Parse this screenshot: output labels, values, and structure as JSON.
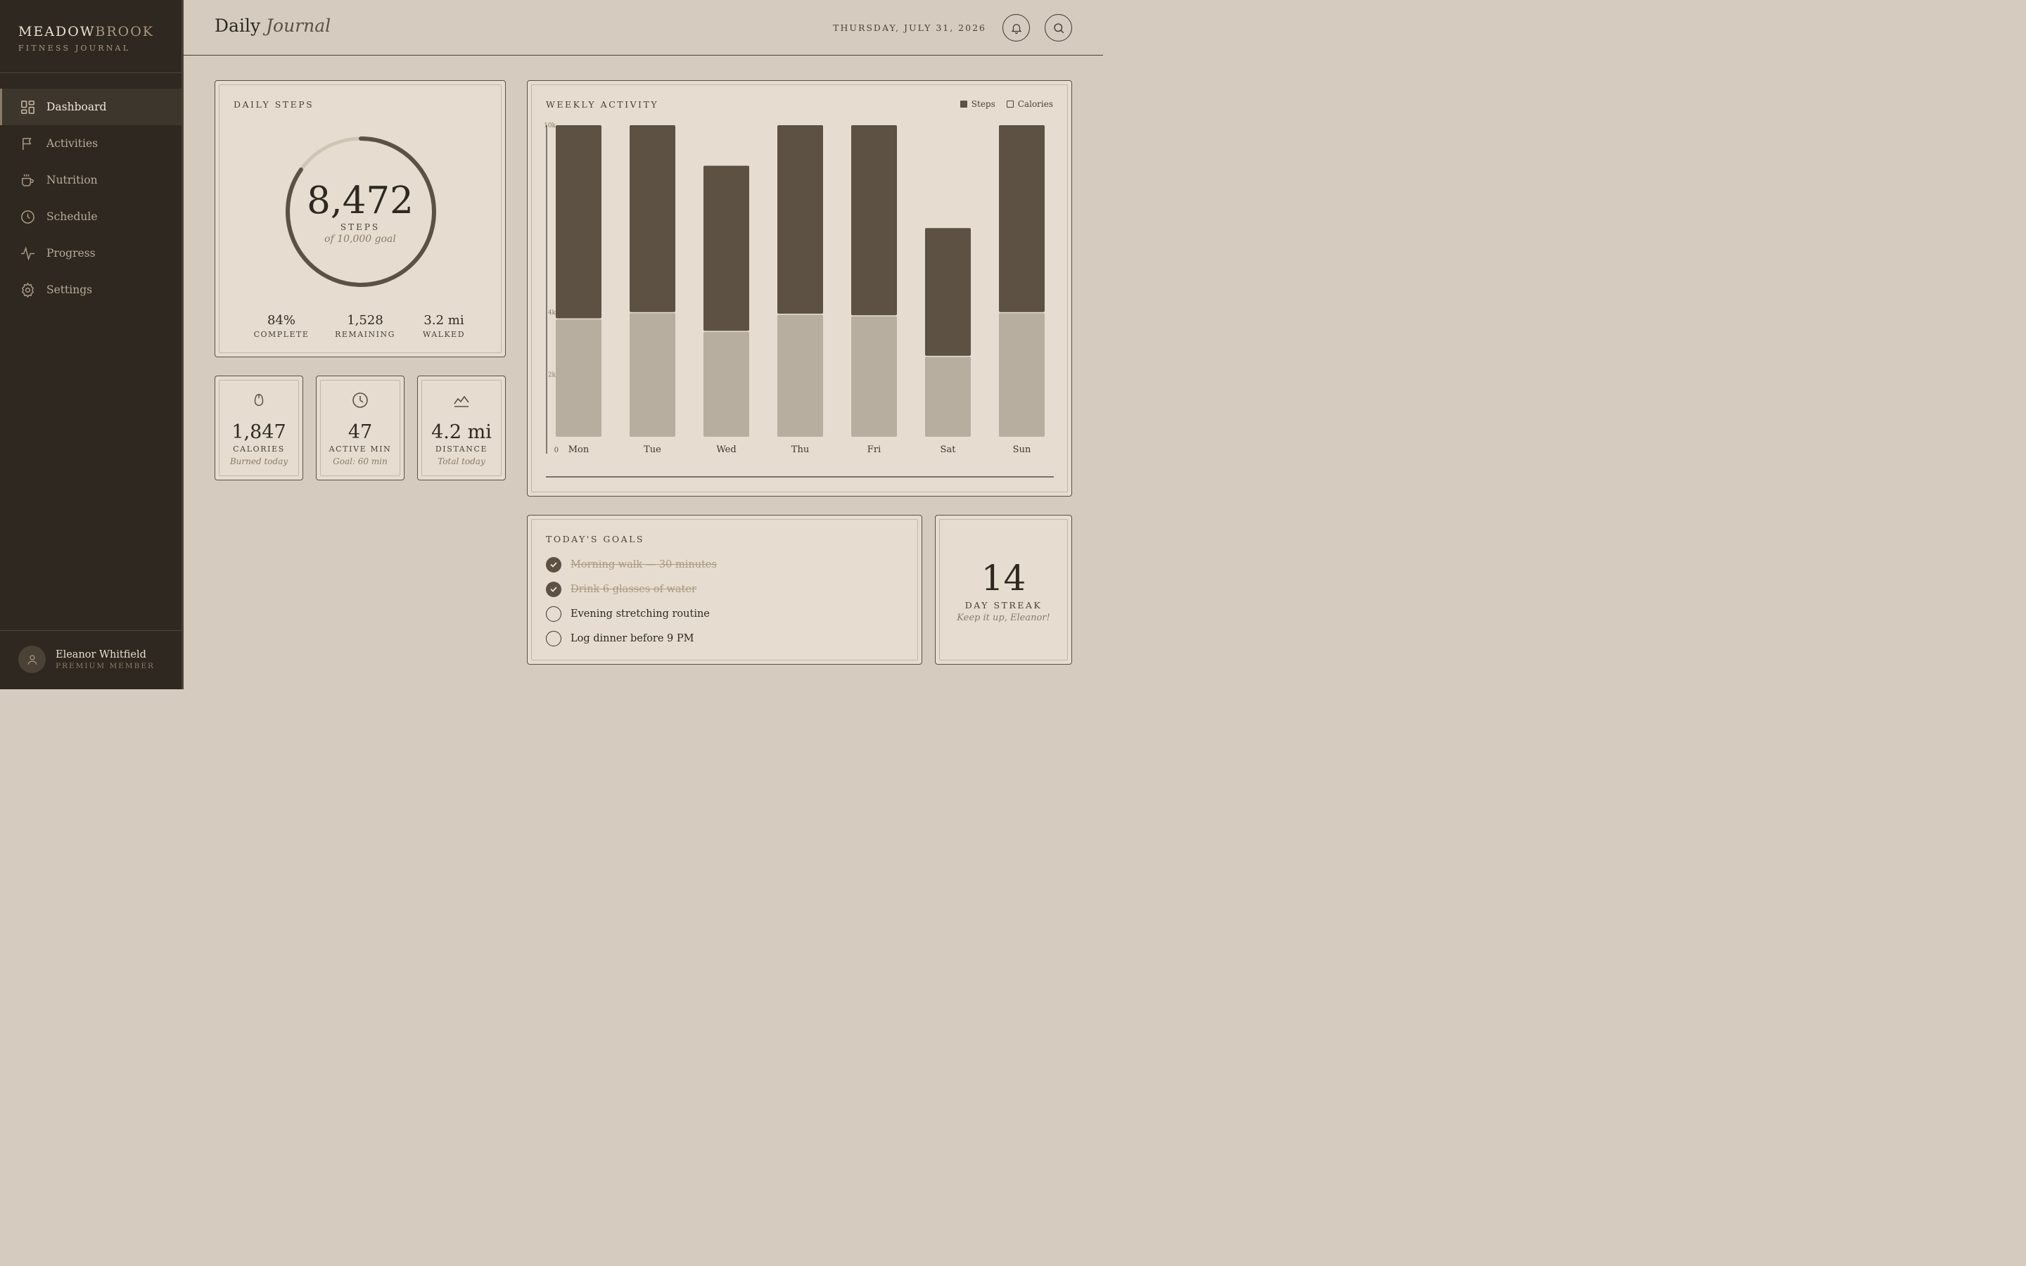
{
  "brand": {
    "name_part1": "MEADOW",
    "name_part2": "BROOK",
    "subtitle": "FITNESS JOURNAL"
  },
  "nav": [
    {
      "label": "Dashboard",
      "icon": "dashboard-icon",
      "active": true
    },
    {
      "label": "Activities",
      "icon": "flag-icon",
      "active": false
    },
    {
      "label": "Nutrition",
      "icon": "cup-icon",
      "active": false
    },
    {
      "label": "Schedule",
      "icon": "clock-icon",
      "active": false
    },
    {
      "label": "Progress",
      "icon": "pulse-icon",
      "active": false
    },
    {
      "label": "Settings",
      "icon": "gear-icon",
      "active": false
    }
  ],
  "user": {
    "name": "Eleanor Whitfield",
    "role": "PREMIUM MEMBER"
  },
  "header": {
    "title_plain": "Daily",
    "title_italic": "Journal",
    "date": "THURSDAY, JULY 31, 2026"
  },
  "daily_steps": {
    "title": "DAILY STEPS",
    "value": "8,472",
    "unit": "STEPS",
    "goal_text": "of 10,000 goal",
    "progress_fraction": 0.8472,
    "stats": [
      {
        "value": "84%",
        "label": "COMPLETE"
      },
      {
        "value": "1,528",
        "label": "REMAINING"
      },
      {
        "value": "3.2 mi",
        "label": "WALKED"
      }
    ]
  },
  "mini_cards": [
    {
      "icon": "flame-icon",
      "value": "1,847",
      "label": "CALORIES",
      "sub": "Burned today"
    },
    {
      "icon": "clock-icon",
      "value": "47",
      "label": "ACTIVE MIN",
      "sub": "Goal: 60 min"
    },
    {
      "icon": "trend-icon",
      "value": "4.2 mi",
      "label": "DISTANCE",
      "sub": "Total today"
    }
  ],
  "weekly": {
    "title": "WEEKLY ACTIVITY",
    "legend": [
      {
        "name": "Steps",
        "color": "#5c5142"
      },
      {
        "name": "Calories",
        "color": "#b8ae9f"
      }
    ]
  },
  "chart_data": {
    "type": "bar",
    "categories": [
      "Mon",
      "Tue",
      "Wed",
      "Thu",
      "Fri",
      "Sat",
      "Sun"
    ],
    "series": [
      {
        "name": "Steps",
        "values": [
          10000,
          10000,
          8700,
          10000,
          10000,
          6700,
          10000
        ]
      },
      {
        "name": "Calories",
        "values": [
          3800,
          4000,
          3400,
          3950,
          3900,
          2600,
          4000
        ]
      }
    ],
    "y_tick_labels": [
      "0",
      "2k",
      "4k",
      "10k"
    ],
    "ylim": [
      0,
      10000
    ],
    "legend": "top-right"
  },
  "goals": {
    "title": "TODAY'S GOALS",
    "items": [
      {
        "text": "Morning walk — 30 minutes",
        "done": true
      },
      {
        "text": "Drink 6 glasses of water",
        "done": true
      },
      {
        "text": "Evening stretching routine",
        "done": false
      },
      {
        "text": "Log dinner before 9 PM",
        "done": false
      }
    ]
  },
  "streak": {
    "value": "14",
    "label": "DAY STREAK",
    "sub": "Keep it up, Eleanor!"
  }
}
